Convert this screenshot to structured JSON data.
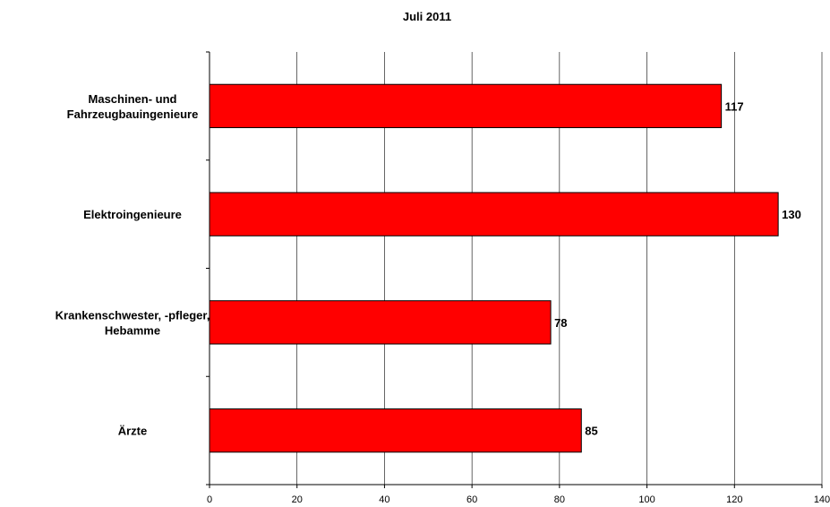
{
  "chart_data": {
    "type": "bar",
    "orientation": "horizontal",
    "title": "Juli 2011",
    "categories": [
      [
        "Maschinen- und",
        "Fahrzeugbauingenieure"
      ],
      [
        "Elektroingenieure"
      ],
      [
        "Krankenschwester, -pfleger,",
        "Hebamme"
      ],
      [
        "Ärzte"
      ]
    ],
    "values": [
      117,
      130,
      78,
      85
    ],
    "xlim": [
      0,
      140
    ],
    "xticks": [
      0,
      20,
      40,
      60,
      80,
      100,
      120,
      140
    ],
    "grid": true,
    "xlabel": "",
    "ylabel": "",
    "bar_color": "#ff0000",
    "bar_edge_color": "#000000"
  }
}
